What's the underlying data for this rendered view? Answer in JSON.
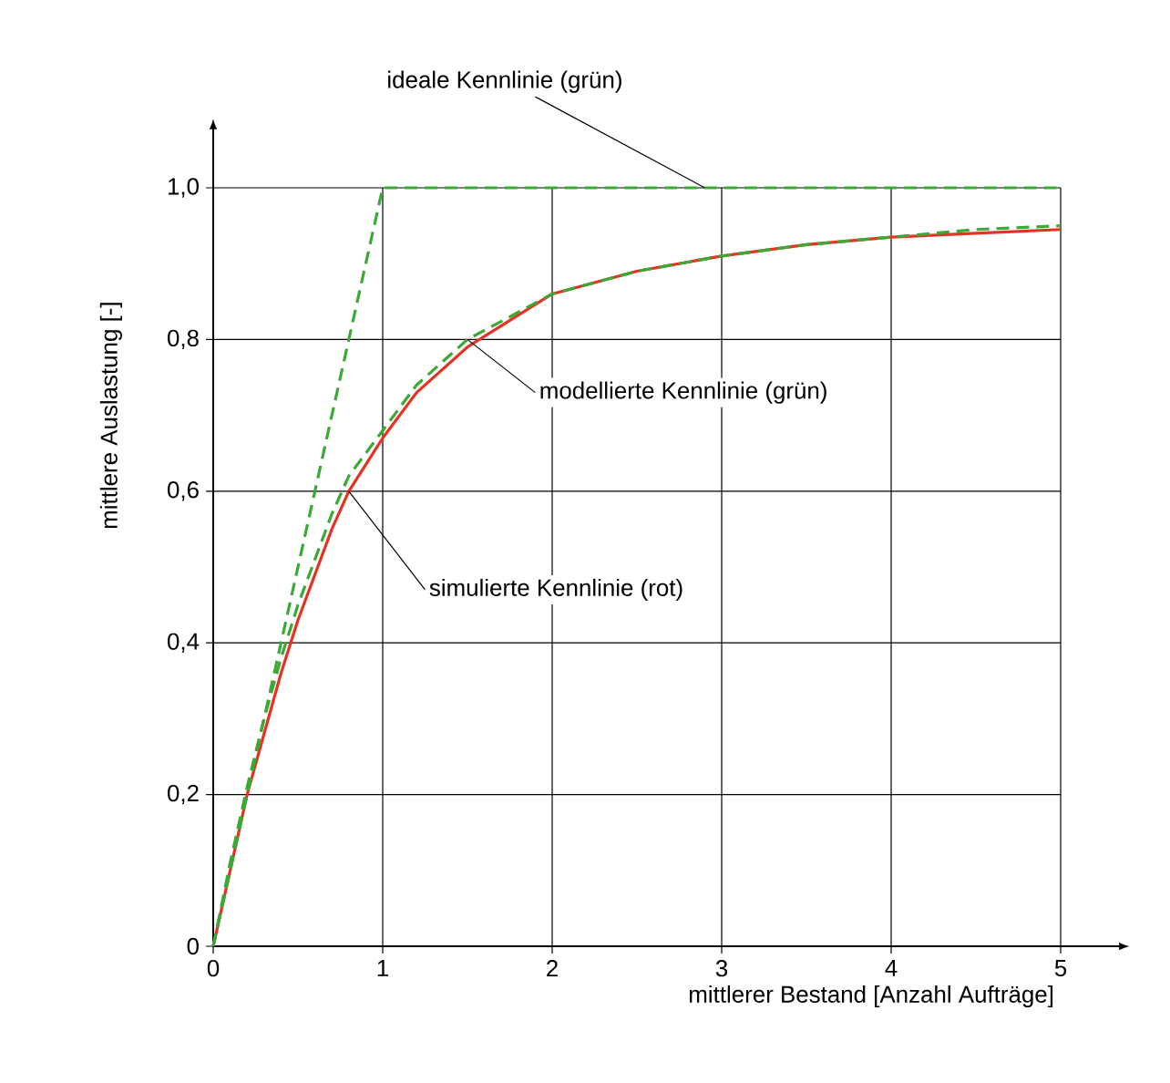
{
  "chart_data": {
    "type": "line",
    "xlabel": "mittlerer Bestand [Anzahl Aufträge]",
    "ylabel": "mittlere Auslastung [-]",
    "xlim": [
      0,
      5
    ],
    "ylim": [
      0,
      1.0
    ],
    "xticks": [
      0,
      1,
      2,
      3,
      4,
      5
    ],
    "yticks": [
      0,
      {
        "value": 0.2,
        "label": "0,2"
      },
      {
        "value": 0.4,
        "label": "0,4"
      },
      {
        "value": 0.6,
        "label": "0,6"
      },
      {
        "value": 0.8,
        "label": "0,8"
      },
      {
        "value": 1.0,
        "label": "1,0"
      }
    ],
    "grid": true,
    "series": [
      {
        "color": "#e53222",
        "line_style": "solid",
        "x": [
          0,
          0.1,
          0.2,
          0.3,
          0.4,
          0.5,
          0.6,
          0.7,
          0.8,
          1.0,
          1.2,
          1.5,
          2,
          2.5,
          3,
          3.5,
          4,
          4.5,
          5
        ],
        "values": [
          0,
          0.1,
          0.2,
          0.28,
          0.36,
          0.43,
          0.49,
          0.55,
          0.6,
          0.67,
          0.73,
          0.79,
          0.86,
          0.89,
          0.91,
          0.925,
          0.935,
          0.94,
          0.945
        ]
      },
      {
        "color": "#3aa935",
        "line_style": "dashed",
        "x": [
          0,
          0.1,
          0.2,
          0.3,
          0.4,
          0.5,
          0.6,
          0.7,
          0.8,
          1.0,
          1.2,
          1.5,
          2,
          2.5,
          3,
          3.5,
          4,
          4.5,
          5
        ],
        "values": [
          0,
          0.11,
          0.21,
          0.3,
          0.38,
          0.45,
          0.51,
          0.57,
          0.62,
          0.68,
          0.74,
          0.8,
          0.86,
          0.89,
          0.91,
          0.925,
          0.935,
          0.945,
          0.95
        ]
      },
      {
        "color": "#3aa935",
        "line_style": "dashed",
        "x": [
          0,
          1,
          5
        ],
        "values": [
          0,
          1,
          1
        ]
      }
    ],
    "annotations": [
      {
        "text": "ideale Kennlinie (grün)",
        "x": 2.9,
        "y": 1.0
      },
      {
        "text": "modellierte Kennlinie (grün)",
        "x": 1.5,
        "y": 0.8
      },
      {
        "text": "simulierte Kennlinie (rot)",
        "x": 0.8,
        "y": 0.6
      }
    ]
  }
}
